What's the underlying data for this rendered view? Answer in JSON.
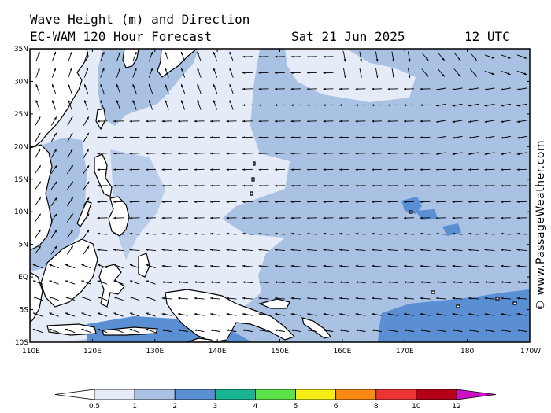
{
  "header": {
    "title_line1": "Wave Height (m) and Direction",
    "title_line2": "EC-WAM 120 Hour Forecast",
    "date": "Sat 21 Jun 2025",
    "time": "12 UTC"
  },
  "map": {
    "lon_range": [
      "110E",
      "170W"
    ],
    "lat_range": [
      "10S",
      "35N"
    ],
    "lat_ticks": [
      "35N",
      "30N",
      "25N",
      "20N",
      "15N",
      "10N",
      "5N",
      "EQ",
      "5S",
      "10S"
    ],
    "lon_ticks": [
      "110E",
      "120E",
      "130E",
      "140E",
      "150E",
      "160E",
      "170E",
      "180",
      "170W"
    ],
    "dominant_wave_direction": "westward trade-wind swell across the central Pacific"
  },
  "legend": {
    "labels": [
      "0.5",
      "1",
      "2",
      "3",
      "4",
      "5",
      "6",
      "8",
      "10",
      "12"
    ],
    "colors": [
      "#e6ecf7",
      "#a9c2e4",
      "#5a8fd3",
      "#1ab694",
      "#5de24a",
      "#f4ee14",
      "#fa8a14",
      "#ec3434",
      "#b40018",
      "#cc10c8"
    ]
  },
  "credit": "© www.PassageWeather.com"
}
